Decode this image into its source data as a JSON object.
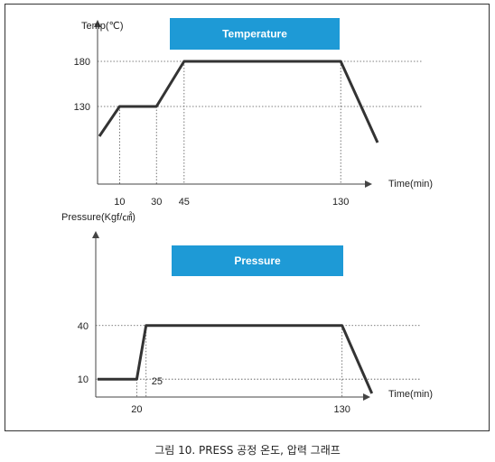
{
  "caption": "그림 10. PRESS 공정 온도, 압력 그래프",
  "colors": {
    "banner": "#1e9ad6",
    "line": "#333333",
    "dotted": "#555555"
  },
  "chart_data": [
    {
      "type": "line",
      "title": "Temperature",
      "xlabel": "Time(min)",
      "ylabel": "Temp(℃)",
      "x_ticks": [
        10,
        30,
        45,
        130
      ],
      "y_ticks": [
        130,
        180
      ],
      "xlim": [
        -1,
        150
      ],
      "ylim": [
        70,
        240
      ],
      "series": [
        {
          "x": [
            -1,
            10,
            30,
            45,
            130,
            150
          ],
          "y": [
            97,
            130,
            130,
            180,
            180,
            90
          ]
        }
      ]
    },
    {
      "type": "line",
      "title": "Pressure",
      "xlabel": "Time(min)",
      "ylabel": "Pressure(Kgf/㎠)",
      "x_ticks": [
        20,
        130
      ],
      "y_ticks": [
        10,
        40
      ],
      "annotations": [
        "25"
      ],
      "xlim": [
        -1,
        150
      ],
      "ylim": [
        0,
        105
      ],
      "series": [
        {
          "x": [
            -1,
            20,
            25,
            130,
            146
          ],
          "y": [
            10,
            10,
            40,
            40,
            2
          ]
        }
      ]
    }
  ]
}
